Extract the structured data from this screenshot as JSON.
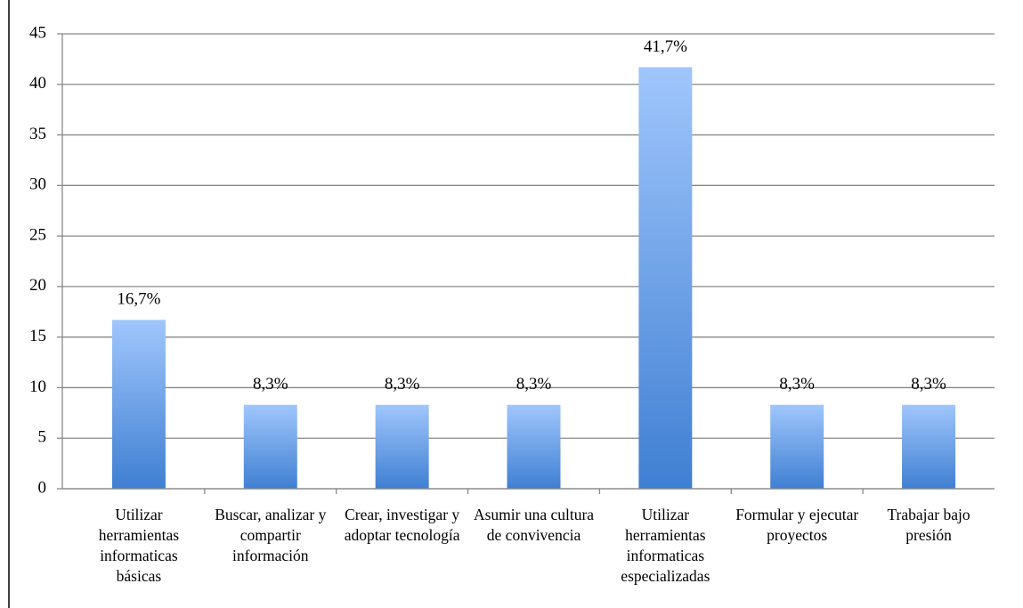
{
  "chart_data": {
    "type": "bar",
    "categories": [
      "Utilizar herramientas informaticas básicas",
      "Buscar, analizar y compartir información",
      "Crear, investigar y adoptar tecnología",
      "Asumir una cultura de convivencia",
      "Utilizar herramientas informaticas especializadas",
      "Formular y ejecutar proyectos",
      "Trabajar bajo presión"
    ],
    "values": [
      16.7,
      8.3,
      8.3,
      8.3,
      41.7,
      8.3,
      8.3
    ],
    "value_labels": [
      "16,7%",
      "8,3%",
      "8,3%",
      "8,3%",
      "41,7%",
      "8,3%",
      "8,3%"
    ],
    "color": [
      "#a0c6fc",
      "#3f7fd2"
    ],
    "ylim": [
      0,
      45
    ],
    "yticks": [
      0,
      5,
      10,
      15,
      20,
      25,
      30,
      35,
      40,
      45
    ],
    "grid": true
  }
}
